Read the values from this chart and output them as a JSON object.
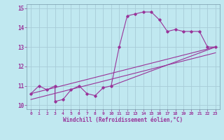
{
  "xlabel": "Windchill (Refroidissement éolien,°C)",
  "ylabel": "",
  "xlim": [
    -0.5,
    23.5
  ],
  "ylim": [
    9.8,
    15.2
  ],
  "yticks": [
    10,
    11,
    12,
    13,
    14,
    15
  ],
  "xticks": [
    0,
    1,
    2,
    3,
    4,
    5,
    6,
    7,
    8,
    9,
    10,
    11,
    12,
    13,
    14,
    15,
    16,
    17,
    18,
    19,
    20,
    21,
    22,
    23
  ],
  "bg_color": "#c0e8f0",
  "grid_color": "#a8ccd8",
  "line_color": "#993399",
  "line1_x": [
    0,
    1,
    2,
    3,
    3,
    4,
    5,
    6,
    7,
    8,
    9,
    10,
    11,
    12,
    13,
    14,
    15,
    16,
    17,
    18,
    19,
    20,
    21,
    22,
    23
  ],
  "line1_y": [
    10.6,
    11.0,
    10.8,
    11.0,
    10.2,
    10.3,
    10.8,
    11.0,
    10.6,
    10.5,
    10.9,
    11.0,
    13.0,
    14.6,
    14.7,
    14.8,
    14.8,
    14.4,
    13.8,
    13.9,
    13.8,
    13.8,
    13.8,
    13.0,
    13.0
  ],
  "line2_x": [
    0,
    23
  ],
  "line2_y": [
    10.6,
    13.0
  ],
  "line3_x": [
    0,
    23
  ],
  "line3_y": [
    10.3,
    12.7
  ],
  "line4_x": [
    10,
    23
  ],
  "line4_y": [
    11.0,
    13.0
  ]
}
